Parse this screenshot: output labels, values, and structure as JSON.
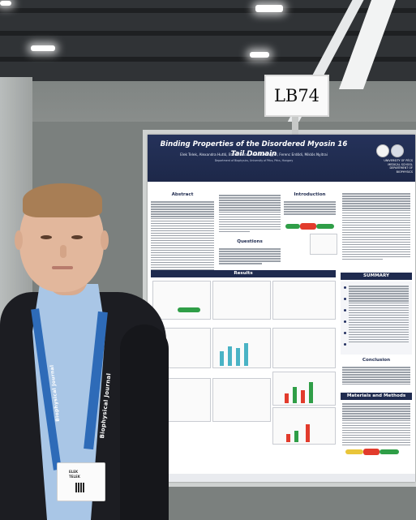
{
  "sign": {
    "code": "LB74"
  },
  "poster": {
    "title": "Binding Properties of the Disordered Myosin 16 Tail Domain",
    "authors": "Elek Telek, Alexandra Hutló, Bálint Bécsi, András Kengyel, Ferenc Erdődi, Miklós Nyitrai",
    "affiliation": "Department of Biophysics, University of Pécs, Pécs, Hungary",
    "university": [
      "UNIVERSITY OF PÉCS",
      "MEDICAL SCHOOL",
      "DEPARTMENT OF BIOPHYSICS"
    ],
    "sections": {
      "abstract": "Abstract",
      "introduction": "Introduction",
      "questions": "Questions",
      "results": "Results",
      "summary": "SUMMARY",
      "conclusion": "Conclusion",
      "methods": "Materials and Methods"
    }
  },
  "lanyard": {
    "text": "Biophysical Journal"
  },
  "badge": {
    "name": "ELEK",
    "surname": "TELEK"
  },
  "colors": {
    "poster_header": "#1f2b4f",
    "lanyard": "#2e6bb8",
    "jacket": "#1c1d22",
    "shirt": "#a9c6e6"
  }
}
